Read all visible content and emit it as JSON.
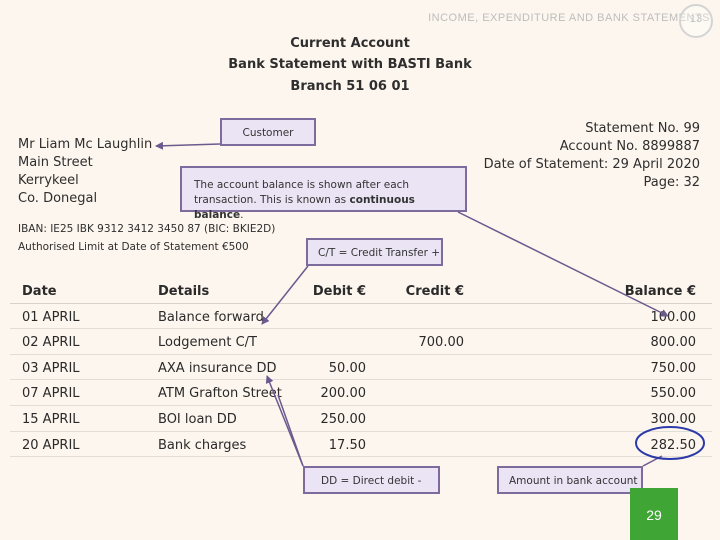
{
  "slide": {
    "title": "INCOME, EXPENDITURE AND BANK STATEMENTS",
    "number": "13",
    "page_number": "29"
  },
  "heading": {
    "line1": "Current Account",
    "line2": "Bank Statement with BASTI Bank",
    "line3": "Branch 51 06 01"
  },
  "customer": {
    "name": "Mr Liam Mc Laughlin",
    "street": "Main Street",
    "town": "Kerrykeel",
    "county": "Co. Donegal"
  },
  "statement": {
    "number": "Statement No. 99",
    "account": "Account No. 8899887",
    "date": "Date of Statement: 29 April 2020",
    "page": "Page: 32"
  },
  "bank_details": {
    "iban": "IBAN: IE25 IBK 9312 3412 3450 87 (BIC: BKIE2D)",
    "limit": "Authorised Limit at Date of Statement €500"
  },
  "callouts": {
    "customer": "Customer",
    "balance_pre": "The account balance is shown after each transaction. This is known as ",
    "balance_bold": "continuous balance",
    "balance_post": ".",
    "credit_transfer": "C/T = Credit Transfer +",
    "direct_debit": "DD = Direct debit -",
    "amount": "Amount in bank account"
  },
  "table": {
    "headers": {
      "date": "Date",
      "details": "Details",
      "debit": "Debit €",
      "credit": "Credit €",
      "balance": "Balance €"
    },
    "rows": [
      {
        "date": "01 APRIL",
        "details": "Balance forward",
        "debit": "",
        "credit": "",
        "balance": "100.00"
      },
      {
        "date": "02 APRIL",
        "details": "Lodgement C/T",
        "debit": "",
        "credit": "700.00",
        "balance": "800.00"
      },
      {
        "date": "03 APRIL",
        "details": "AXA insurance DD",
        "debit": "50.00",
        "credit": "",
        "balance": "750.00"
      },
      {
        "date": "07 APRIL",
        "details": "ATM Grafton Street",
        "debit": "200.00",
        "credit": "",
        "balance": "550.00"
      },
      {
        "date": "15 APRIL",
        "details": "BOI loan DD",
        "debit": "250.00",
        "credit": "",
        "balance": "300.00"
      },
      {
        "date": "20 APRIL",
        "details": "Bank charges",
        "debit": "17.50",
        "credit": "",
        "balance": "282.50"
      }
    ]
  },
  "colors": {
    "callout_border": "#7d6b9e",
    "callout_fill": "#ebe4f4",
    "arrow": "#6b5a8e",
    "page_badge": "#3fa535"
  }
}
